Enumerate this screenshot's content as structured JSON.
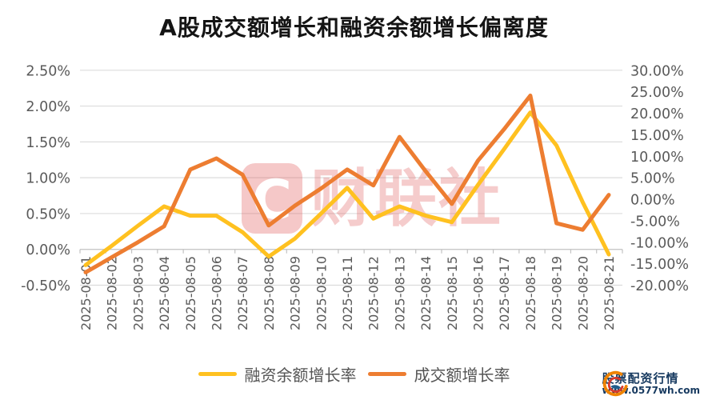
{
  "chart_data": {
    "type": "line",
    "title": "A股成交额增长和融资余额增长偏离度",
    "categories": [
      "2025-08-01",
      "2025-08-02",
      "2025-08-03",
      "2025-08-04",
      "2025-08-05",
      "2025-08-06",
      "2025-08-07",
      "2025-08-08",
      "2025-08-09",
      "2025-08-10",
      "2025-08-11",
      "2025-08-12",
      "2025-08-13",
      "2025-08-14",
      "2025-08-15",
      "2025-08-16",
      "2025-08-17",
      "2025-08-18",
      "2025-08-19",
      "2025-08-20",
      "2025-08-21"
    ],
    "series": [
      {
        "name": "融资余额增长率",
        "axis": "left",
        "color": "#FFC120",
        "values": [
          -0.22,
          0.05,
          0.33,
          0.6,
          0.47,
          0.47,
          0.24,
          -0.1,
          0.15,
          0.5,
          0.86,
          0.43,
          0.6,
          0.47,
          0.38,
          0.9,
          1.4,
          1.91,
          1.45,
          0.66,
          -0.07
        ]
      },
      {
        "name": "成交额增长率",
        "axis": "right",
        "color": "#ED7D31",
        "values": [
          -17.0,
          -13.5,
          -10.0,
          -6.3,
          6.9,
          9.5,
          5.7,
          -6.1,
          -1.5,
          2.5,
          6.9,
          3.2,
          14.5,
          6.5,
          -1.1,
          9.0,
          16.3,
          24.1,
          -5.6,
          -7.1,
          1.0
        ]
      }
    ],
    "left_axis": {
      "min": -0.5,
      "max": 2.5,
      "ticks": [
        "2.50%",
        "2.00%",
        "1.50%",
        "1.00%",
        "0.50%",
        "0.00%",
        "-0.50%"
      ]
    },
    "right_axis": {
      "min": -20,
      "max": 30,
      "ticks": [
        "30.00%",
        "25.00%",
        "20.00%",
        "15.00%",
        "10.00%",
        "5.00%",
        "0.00%",
        "-5.00%",
        "-10.00%",
        "-15.00%",
        "-20.00%"
      ]
    },
    "grid": true,
    "legend_position": "bottom"
  },
  "watermark": {
    "badge": "C",
    "text": "财联社",
    "color": "#E05858"
  },
  "footer": {
    "brand": "股票配资行情",
    "website": "www.0577wh.com"
  }
}
